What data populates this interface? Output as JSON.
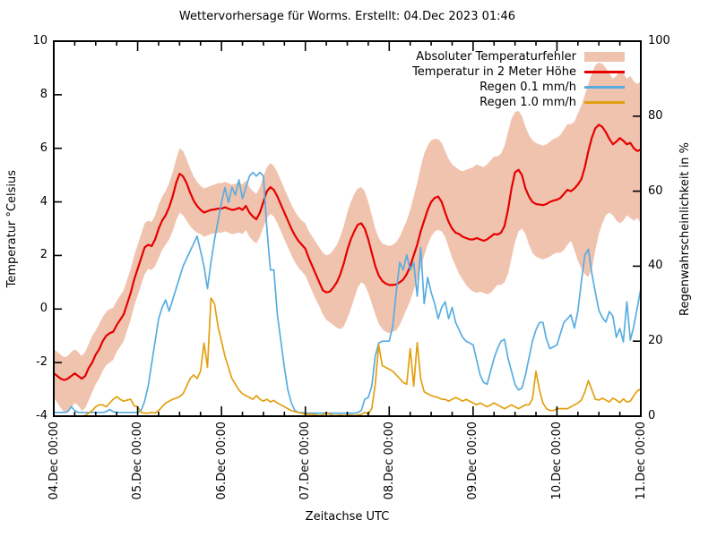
{
  "chart_data": {
    "type": "line",
    "title": "Wettervorhersage für Worms. Erstellt: 04.Dec 2023 01:46",
    "x_axis": {
      "label": "Zeitachse UTC",
      "tick_labels": [
        "04.Dec 00:00",
        "05.Dec 00:00",
        "06.Dec 00:00",
        "07.Dec 00:00",
        "08.Dec 00:00",
        "09.Dec 00:00",
        "10.Dec 00:00",
        "11.Dec 00:00"
      ],
      "range_hours": [
        0,
        168
      ],
      "minor_tick_hours": 6
    },
    "y_left": {
      "label": "Temperatur °Celsius",
      "range": [
        -4,
        10
      ],
      "ticks": [
        -4,
        -2,
        0,
        2,
        4,
        6,
        8,
        10
      ]
    },
    "y_right": {
      "label": "Regenwahrscheinlichkeit in %",
      "range": [
        0,
        100
      ],
      "ticks": [
        0,
        20,
        40,
        60,
        80,
        100
      ]
    },
    "grid": false,
    "legend_position": "top-right-inside",
    "legend": [
      {
        "label": "Absoluter Temperaturfehler",
        "type": "band",
        "color": "#f0c3ae"
      },
      {
        "label": "Temperatur in 2 Meter Höhe",
        "type": "line",
        "color": "#e60000"
      },
      {
        "label": "Regen 0.1 mm/h",
        "type": "line",
        "color": "#58ade0"
      },
      {
        "label": "Regen 1.0 mm/h",
        "type": "line",
        "color": "#e2a010"
      }
    ],
    "sample_interval_hours": 1,
    "series": {
      "temperature_error_band": {
        "axis": "left",
        "high": [
          -1.5,
          -1.6,
          -1.7,
          -1.8,
          -1.75,
          -1.6,
          -1.5,
          -1.6,
          -1.75,
          -1.6,
          -1.3,
          -1.0,
          -0.8,
          -0.55,
          -0.3,
          -0.1,
          0.0,
          0.05,
          0.3,
          0.5,
          0.7,
          1.1,
          1.5,
          2.0,
          2.4,
          2.8,
          3.2,
          3.3,
          3.25,
          3.5,
          3.9,
          4.2,
          4.4,
          4.7,
          5.1,
          5.6,
          6.0,
          5.9,
          5.6,
          5.25,
          4.95,
          4.75,
          4.6,
          4.5,
          4.55,
          4.6,
          4.65,
          4.7,
          4.7,
          4.75,
          4.7,
          4.65,
          4.68,
          4.72,
          4.65,
          4.8,
          4.55,
          4.4,
          4.3,
          4.55,
          4.95,
          5.3,
          5.45,
          5.35,
          5.1,
          4.8,
          4.5,
          4.2,
          3.9,
          3.65,
          3.45,
          3.3,
          3.2,
          2.9,
          2.7,
          2.5,
          2.3,
          2.1,
          2.0,
          2.05,
          2.2,
          2.4,
          2.7,
          3.1,
          3.6,
          4.0,
          4.3,
          4.5,
          4.55,
          4.4,
          4.0,
          3.5,
          3.0,
          2.65,
          2.45,
          2.4,
          2.35,
          2.4,
          2.5,
          2.7,
          3.0,
          3.3,
          3.7,
          4.2,
          4.7,
          5.3,
          5.8,
          6.1,
          6.3,
          6.35,
          6.35,
          6.2,
          5.9,
          5.6,
          5.4,
          5.3,
          5.2,
          5.15,
          5.2,
          5.25,
          5.3,
          5.4,
          5.35,
          5.3,
          5.4,
          5.55,
          5.7,
          5.7,
          5.8,
          6.1,
          6.6,
          7.1,
          7.35,
          7.4,
          7.2,
          6.8,
          6.5,
          6.3,
          6.2,
          6.15,
          6.1,
          6.15,
          6.25,
          6.35,
          6.4,
          6.5,
          6.7,
          6.9,
          6.9,
          7.0,
          7.3,
          7.6,
          8.0,
          8.4,
          8.8,
          9.1,
          9.2,
          9.15,
          9.0,
          8.8,
          8.6,
          8.7,
          8.9,
          8.8,
          8.6,
          8.7,
          8.5,
          8.4,
          8.5
        ],
        "low": [
          -3.3,
          -3.5,
          -3.7,
          -3.85,
          -3.8,
          -3.7,
          -3.5,
          -3.6,
          -3.8,
          -3.7,
          -3.4,
          -3.1,
          -2.8,
          -2.6,
          -2.3,
          -2.1,
          -2.0,
          -1.9,
          -1.6,
          -1.4,
          -1.2,
          -0.8,
          -0.4,
          0.1,
          0.5,
          0.9,
          1.3,
          1.5,
          1.45,
          1.6,
          1.9,
          2.2,
          2.4,
          2.6,
          2.9,
          3.3,
          3.6,
          3.5,
          3.3,
          3.1,
          2.95,
          2.85,
          2.8,
          2.7,
          2.75,
          2.8,
          2.82,
          2.85,
          2.85,
          2.9,
          2.85,
          2.8,
          2.82,
          2.86,
          2.8,
          2.95,
          2.7,
          2.55,
          2.45,
          2.7,
          3.05,
          3.4,
          3.55,
          3.45,
          3.2,
          2.9,
          2.6,
          2.3,
          2.0,
          1.75,
          1.55,
          1.4,
          1.25,
          0.95,
          0.65,
          0.35,
          0.1,
          -0.2,
          -0.4,
          -0.5,
          -0.6,
          -0.7,
          -0.75,
          -0.65,
          -0.35,
          0.0,
          0.4,
          0.8,
          1.0,
          0.9,
          0.6,
          0.2,
          -0.2,
          -0.55,
          -0.75,
          -0.85,
          -0.9,
          -0.85,
          -0.8,
          -0.6,
          -0.3,
          0.0,
          0.3,
          0.7,
          1.1,
          1.5,
          2.0,
          2.4,
          2.7,
          2.9,
          2.95,
          2.9,
          2.7,
          2.3,
          1.9,
          1.6,
          1.3,
          1.1,
          0.9,
          0.75,
          0.65,
          0.6,
          0.65,
          0.6,
          0.55,
          0.6,
          0.75,
          0.9,
          0.9,
          1.0,
          1.3,
          1.9,
          2.5,
          2.9,
          3.0,
          2.8,
          2.4,
          2.1,
          1.95,
          1.9,
          1.85,
          1.9,
          1.95,
          2.05,
          2.1,
          2.1,
          2.2,
          2.4,
          2.55,
          2.2,
          1.8,
          1.5,
          1.3,
          1.2,
          1.5,
          2.2,
          2.8,
          3.2,
          3.5,
          3.6,
          3.5,
          3.3,
          3.2,
          3.3,
          3.5,
          3.4,
          3.3,
          3.4,
          3.2
        ]
      },
      "temperature_2m": {
        "axis": "left",
        "values": [
          -2.4,
          -2.5,
          -2.6,
          -2.65,
          -2.6,
          -2.5,
          -2.4,
          -2.5,
          -2.6,
          -2.5,
          -2.2,
          -2.0,
          -1.7,
          -1.5,
          -1.2,
          -1.0,
          -0.9,
          -0.85,
          -0.6,
          -0.4,
          -0.2,
          0.2,
          0.6,
          1.1,
          1.5,
          1.9,
          2.3,
          2.4,
          2.35,
          2.6,
          3.0,
          3.3,
          3.5,
          3.8,
          4.2,
          4.7,
          5.05,
          4.95,
          4.7,
          4.35,
          4.05,
          3.85,
          3.7,
          3.6,
          3.65,
          3.7,
          3.72,
          3.75,
          3.75,
          3.8,
          3.75,
          3.7,
          3.72,
          3.78,
          3.7,
          3.85,
          3.6,
          3.45,
          3.35,
          3.6,
          4.0,
          4.4,
          4.55,
          4.45,
          4.2,
          3.9,
          3.6,
          3.3,
          3.0,
          2.75,
          2.55,
          2.4,
          2.25,
          1.9,
          1.6,
          1.3,
          1.0,
          0.7,
          0.62,
          0.65,
          0.8,
          1.0,
          1.3,
          1.7,
          2.2,
          2.6,
          2.9,
          3.15,
          3.2,
          3.0,
          2.6,
          2.1,
          1.6,
          1.25,
          1.05,
          0.95,
          0.9,
          0.9,
          0.92,
          1.0,
          1.1,
          1.3,
          1.6,
          2.0,
          2.4,
          2.9,
          3.3,
          3.7,
          4.0,
          4.15,
          4.2,
          4.0,
          3.6,
          3.25,
          3.0,
          2.85,
          2.8,
          2.7,
          2.65,
          2.6,
          2.6,
          2.65,
          2.6,
          2.55,
          2.6,
          2.7,
          2.8,
          2.78,
          2.85,
          3.1,
          3.7,
          4.5,
          5.1,
          5.2,
          5.0,
          4.5,
          4.2,
          4.0,
          3.92,
          3.9,
          3.88,
          3.92,
          4.0,
          4.05,
          4.08,
          4.15,
          4.3,
          4.45,
          4.4,
          4.5,
          4.65,
          4.85,
          5.3,
          5.9,
          6.4,
          6.75,
          6.88,
          6.8,
          6.6,
          6.35,
          6.15,
          6.25,
          6.38,
          6.28,
          6.15,
          6.2,
          6.0,
          5.9,
          5.95
        ]
      },
      "rain_01mmh": {
        "axis": "right",
        "values": [
          1,
          1,
          1,
          1,
          1.2,
          2.5,
          1.5,
          1,
          1,
          1,
          1,
          1,
          1,
          1,
          1,
          1.2,
          1.8,
          1.2,
          1,
          1,
          1,
          1,
          1,
          1,
          1,
          1.5,
          4,
          8,
          14,
          20,
          26,
          29,
          31,
          28,
          31,
          34,
          37,
          40,
          42,
          44,
          46,
          48,
          44,
          40,
          34,
          41,
          47,
          52,
          57,
          61,
          57,
          61,
          59,
          63,
          58,
          61,
          64,
          65,
          64,
          65,
          64,
          50,
          39,
          39,
          27,
          20,
          13,
          7,
          3.5,
          1.5,
          1,
          1,
          0.8,
          0.8,
          0.8,
          0.8,
          0.8,
          0.8,
          0.8,
          0.8,
          0.8,
          0.8,
          0.8,
          0.8,
          0.8,
          0.8,
          0.8,
          1,
          1.5,
          4.5,
          5,
          8,
          16,
          19.5,
          20,
          20,
          20,
          24,
          33,
          41,
          39,
          43,
          39,
          41,
          32,
          45,
          30,
          37,
          33,
          30,
          26,
          29,
          30.5,
          26,
          29,
          25,
          23,
          21,
          20,
          19.5,
          19,
          15,
          11,
          9,
          8.5,
          12,
          15.5,
          18,
          20,
          20.5,
          15.5,
          12,
          8.5,
          7,
          7.5,
          11,
          15.5,
          20,
          23,
          25,
          25,
          20.5,
          18,
          18.5,
          19,
          22,
          25,
          26,
          27,
          23.5,
          28,
          36,
          43,
          44.5,
          38,
          33,
          28.2,
          26.3,
          25.1,
          27.9,
          26.7,
          21,
          23.4,
          19.8,
          30.5,
          20.3,
          24,
          29,
          34
        ]
      },
      "rain_10mmh": {
        "axis": "right",
        "values": [
          0,
          0,
          0,
          0,
          0,
          0,
          0,
          0,
          0,
          0.2,
          0.8,
          1.5,
          2.5,
          3,
          3,
          2.5,
          3.5,
          4.5,
          5.2,
          4.5,
          4,
          4.3,
          4.5,
          2.8,
          2.5,
          1,
          0.8,
          0.8,
          1,
          0.8,
          1.5,
          2.5,
          3.5,
          4,
          4.5,
          4.8,
          5.2,
          6,
          8,
          10,
          11,
          10,
          12,
          19.5,
          13,
          31.5,
          30,
          24,
          20,
          16,
          13,
          10,
          8.5,
          7,
          6,
          5.5,
          5,
          4.5,
          5.5,
          4.5,
          4,
          4.5,
          3.8,
          4.2,
          3.5,
          3,
          2.5,
          2,
          1.5,
          1.2,
          1,
          0.8,
          0.5,
          0.5,
          0.5,
          0.3,
          0.2,
          0.3,
          1,
          0.5,
          0.2,
          0.2,
          0.3,
          0.2,
          0.2,
          0.3,
          0.2,
          0.3,
          0.5,
          1,
          0.5,
          2,
          8.5,
          19,
          13.5,
          13,
          12.5,
          12,
          11,
          10,
          9,
          8.5,
          18,
          8,
          19.6,
          10,
          6.5,
          6,
          5.5,
          5.2,
          5,
          4.5,
          4.5,
          4,
          4.5,
          5,
          4.5,
          4,
          4.5,
          4,
          3.5,
          3,
          3.5,
          3,
          2.5,
          3,
          3.5,
          3,
          2.5,
          2,
          2.5,
          3,
          2.5,
          2,
          2.5,
          3,
          3,
          4.5,
          12,
          7,
          3.5,
          2,
          1.5,
          1.5,
          2,
          2,
          2,
          2,
          2.5,
          3,
          3.5,
          4.3,
          6.5,
          9.5,
          7,
          4.5,
          4.3,
          4.8,
          4.3,
          3.8,
          4.8,
          4.3,
          3.6,
          4.6,
          3.8,
          4,
          5.5,
          6.7,
          7.3
        ]
      }
    }
  }
}
